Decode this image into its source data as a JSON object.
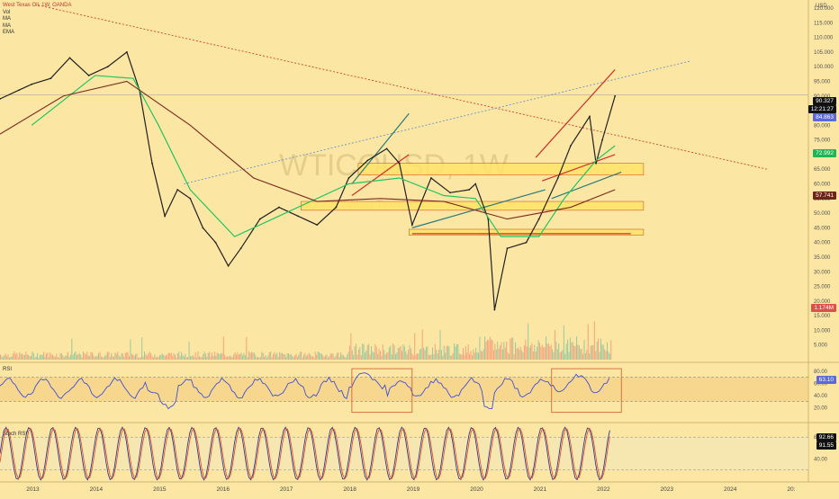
{
  "legend": {
    "title": "West Texas Oil, 1W, OANDA",
    "items": [
      "Vol",
      "MA",
      "MA",
      "EMA"
    ]
  },
  "watermark": {
    "symbol": "WTICOUSD, 1W",
    "name": "West Texas Oil"
  },
  "currency": "USD",
  "price_ticks": [
    "120.000",
    "115.000",
    "110.000",
    "105.000",
    "100.000",
    "95.000",
    "90.000",
    "85.000",
    "80.000",
    "75.000",
    "70.000",
    "65.000",
    "60.000",
    "55.000",
    "50.000",
    "45.000",
    "40.000",
    "35.000",
    "30.000",
    "25.000",
    "20.000",
    "15.000",
    "10.000",
    "5.000"
  ],
  "x_ticks": [
    "2013",
    "2014",
    "2015",
    "2016",
    "2017",
    "2018",
    "2019",
    "2020",
    "2021",
    "2022",
    "2023",
    "2024",
    "20:"
  ],
  "rsi": {
    "label": "RSI",
    "ticks": [
      "80.00",
      "60.00",
      "40.00",
      "20.00"
    ],
    "value": "63.10"
  },
  "stoch": {
    "label": "Stoch RSI",
    "ticks": [
      "80.00",
      "40.00"
    ],
    "k": "92.66",
    "d": "91.55"
  },
  "badges": {
    "last": "90.327",
    "countdown": "12:21:27",
    "ma_fast": "84.863",
    "ema": "72.992",
    "ma_slow": "57.741",
    "volume": "1.174M"
  },
  "colors": {
    "background": "#fbe6a3",
    "up": "#26a69a",
    "down": "#ef5350",
    "price": "#222222",
    "ma_fast": "#8f9ef0",
    "ema": "#22c55e",
    "ma_slow": "#7b2a1e",
    "trend_red": "#d0302a",
    "trend_teal": "#2c7a7b",
    "rsi_line": "#3f4fd8",
    "stoch_k": "#2f3b8c",
    "stoch_d": "#e0542f",
    "zone": "#ffe36a",
    "zone_border": "#d05a2a"
  },
  "chart_data": {
    "type": "line",
    "title": "West Texas Oil, 1W, OANDA",
    "xlabel": "",
    "ylabel": "USD",
    "ylim": [
      0,
      120
    ],
    "x": [
      2012.5,
      2012.8,
      2013.0,
      2013.3,
      2013.6,
      2013.9,
      2014.2,
      2014.5,
      2014.7,
      2014.9,
      2015.1,
      2015.3,
      2015.5,
      2015.7,
      2015.9,
      2016.1,
      2016.3,
      2016.6,
      2016.9,
      2017.2,
      2017.5,
      2017.8,
      2018.0,
      2018.3,
      2018.6,
      2018.8,
      2019.0,
      2019.3,
      2019.6,
      2019.9,
      2020.0,
      2020.2,
      2020.3,
      2020.5,
      2020.8,
      2021.0,
      2021.3,
      2021.5,
      2021.8,
      2021.9,
      2022.0,
      2022.2
    ],
    "series": [
      {
        "values": [
          89,
          92,
          94,
          96,
          103,
          97,
          100,
          105,
          92,
          67,
          49,
          58,
          55,
          45,
          40,
          32,
          38,
          48,
          52,
          49,
          46,
          52,
          62,
          68,
          72,
          67,
          46,
          62,
          57,
          58,
          60,
          48,
          17,
          38,
          40,
          48,
          62,
          73,
          83,
          67,
          75,
          90
        ]
      }
    ],
    "annotations": [
      "Price 90.327",
      "MA 84.863",
      "EMA 72.992",
      "MA 57.741",
      "Volume 1.174M",
      "RSI 63.10",
      "Stoch RSI 92.66 / 91.55"
    ]
  }
}
